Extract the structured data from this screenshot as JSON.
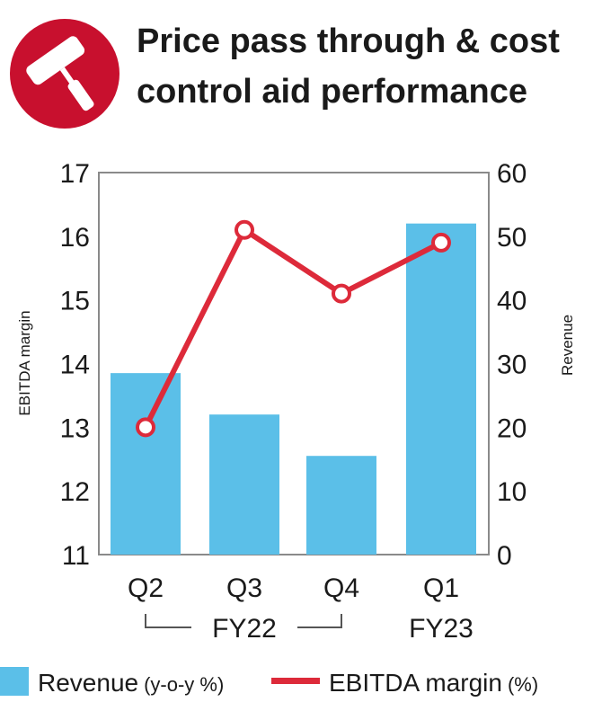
{
  "chart_data": {
    "type": "bar",
    "title_line1": "Price pass through & cost",
    "title_line2": "control aid performance",
    "categories": [
      "Q2",
      "Q3",
      "Q4",
      "Q1"
    ],
    "category_groups": [
      {
        "label": "FY22",
        "categories": [
          "Q2",
          "Q3",
          "Q4"
        ]
      },
      {
        "label": "FY23",
        "categories": [
          "Q1"
        ]
      }
    ],
    "series": [
      {
        "name": "Revenue",
        "unit": "(y-o-y %)",
        "type": "bar",
        "axis": "right",
        "values": [
          28.5,
          22,
          15.5,
          52
        ],
        "color": "#5bbfe8"
      },
      {
        "name": "EBITDA margin",
        "unit": "(%)",
        "type": "line",
        "axis": "left",
        "values": [
          13.0,
          16.1,
          15.1,
          15.9
        ],
        "color": "#dd2a3a"
      }
    ],
    "ylabel_left": "EBITDA margin",
    "ylabel_right": "Revenue",
    "ylim_left": [
      11,
      17
    ],
    "ylim_right": [
      0,
      60
    ],
    "yticks_left": [
      "11",
      "12",
      "13",
      "14",
      "15",
      "16",
      "17"
    ],
    "yticks_right": [
      "0",
      "10",
      "20",
      "30",
      "40",
      "50",
      "60"
    ],
    "grid": false,
    "legend_position": "bottom",
    "icon": "paint-roller-icon",
    "icon_color": "#c8102e"
  }
}
